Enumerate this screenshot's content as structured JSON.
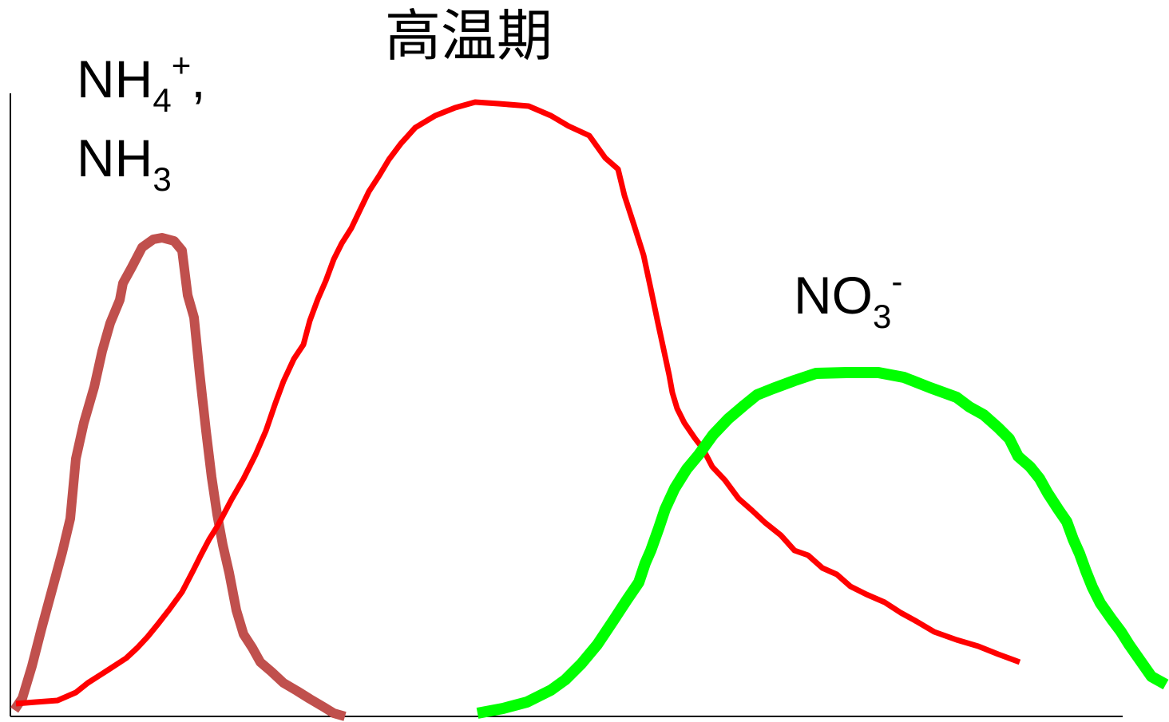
{
  "title": "高温期",
  "labels": {
    "ammonium": {
      "base": "NH",
      "sub": "4",
      "sup": "+",
      "suffix": ","
    },
    "ammonia": {
      "base": "NH",
      "sub": "3"
    },
    "nitrate": {
      "base": "NO",
      "sub": "3",
      "sup": "-"
    }
  },
  "colors": {
    "ammonium_curve": "#c0504d",
    "temperature_curve": "#ff0000",
    "nitrate_curve": "#00ff00",
    "axis": "#000000"
  }
}
